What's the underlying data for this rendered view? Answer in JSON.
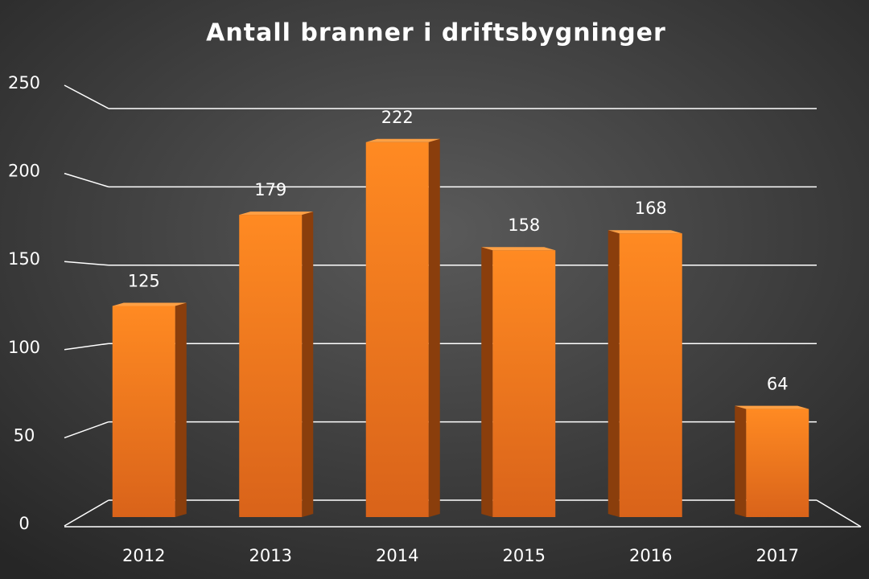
{
  "chart_data": {
    "type": "bar",
    "title": "Antall branner i driftsbygninger",
    "categories": [
      "2012",
      "2013",
      "2014",
      "2015",
      "2016",
      "2017"
    ],
    "values": [
      125,
      179,
      222,
      158,
      168,
      64
    ],
    "color": "#f47c1c",
    "ylim": [
      0,
      250
    ],
    "yticks": [
      0,
      50,
      100,
      150,
      200,
      250
    ],
    "grid": true
  }
}
